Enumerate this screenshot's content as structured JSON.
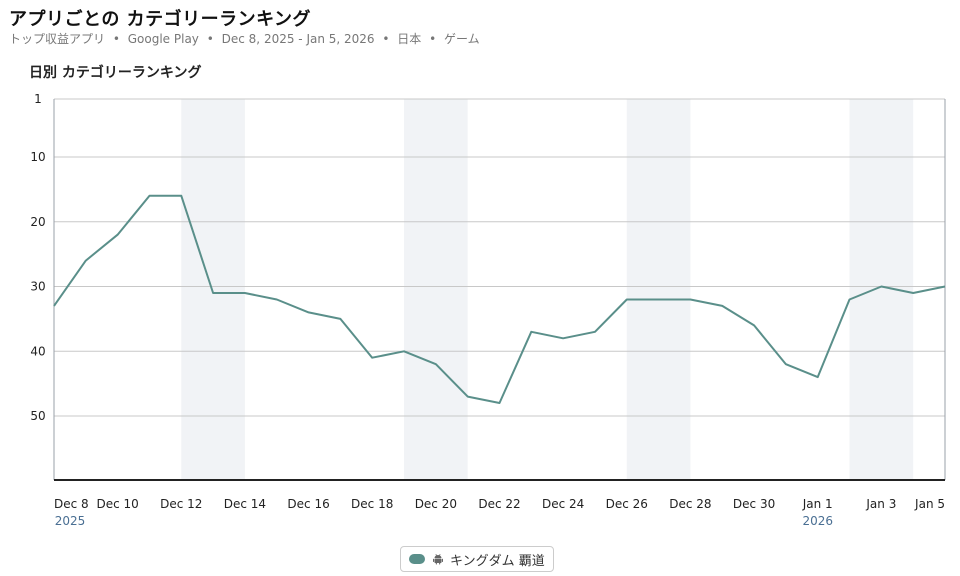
{
  "header": {
    "title": "アプリごとの カテゴリーランキング",
    "subtitle_parts": [
      "トップ収益アプリ",
      "Google Play",
      "Dec 8, 2025 - Jan 5, 2026",
      "日本",
      "ゲーム"
    ],
    "separator": "•"
  },
  "chart_data": {
    "type": "line",
    "title": "日別 カテゴリーランキング",
    "y_axis": {
      "reversed": true,
      "min": 1,
      "max": 60,
      "ticks": [
        1,
        10,
        20,
        30,
        40,
        50
      ]
    },
    "x_axis": {
      "start": "2025-12-08",
      "end": "2026-01-05",
      "tick_labels": [
        {
          "date": "2025-12-08",
          "label": "Dec 8",
          "year": "2025"
        },
        {
          "date": "2025-12-10",
          "label": "Dec 10"
        },
        {
          "date": "2025-12-12",
          "label": "Dec 12"
        },
        {
          "date": "2025-12-14",
          "label": "Dec 14"
        },
        {
          "date": "2025-12-16",
          "label": "Dec 16"
        },
        {
          "date": "2025-12-18",
          "label": "Dec 18"
        },
        {
          "date": "2025-12-20",
          "label": "Dec 20"
        },
        {
          "date": "2025-12-22",
          "label": "Dec 22"
        },
        {
          "date": "2025-12-24",
          "label": "Dec 24"
        },
        {
          "date": "2025-12-26",
          "label": "Dec 26"
        },
        {
          "date": "2025-12-28",
          "label": "Dec 28"
        },
        {
          "date": "2025-12-30",
          "label": "Dec 30"
        },
        {
          "date": "2026-01-01",
          "label": "Jan 1",
          "year": "2026"
        },
        {
          "date": "2026-01-03",
          "label": "Jan 3"
        },
        {
          "date": "2026-01-05",
          "label": "Jan 5"
        }
      ]
    },
    "weekend_bands": [
      [
        "2025-12-12",
        "2025-12-14"
      ],
      [
        "2025-12-19",
        "2025-12-21"
      ],
      [
        "2025-12-26",
        "2025-12-28"
      ],
      [
        "2026-01-02",
        "2026-01-04"
      ]
    ],
    "grid": true,
    "legend_position": "bottom-center",
    "series": [
      {
        "name": "キングダム 覇道",
        "platform_icon": "android-icon",
        "color": "#5a8f8a",
        "x": [
          "2025-12-08",
          "2025-12-09",
          "2025-12-10",
          "2025-12-11",
          "2025-12-12",
          "2025-12-13",
          "2025-12-14",
          "2025-12-15",
          "2025-12-16",
          "2025-12-17",
          "2025-12-18",
          "2025-12-19",
          "2025-12-20",
          "2025-12-21",
          "2025-12-22",
          "2025-12-23",
          "2025-12-24",
          "2025-12-25",
          "2025-12-26",
          "2025-12-27",
          "2025-12-28",
          "2025-12-29",
          "2025-12-30",
          "2025-12-31",
          "2026-01-01",
          "2026-01-02",
          "2026-01-03",
          "2026-01-04",
          "2026-01-05"
        ],
        "values": [
          33,
          26,
          22,
          16,
          16,
          31,
          31,
          32,
          34,
          35,
          41,
          40,
          42,
          47,
          48,
          37,
          38,
          37,
          32,
          32,
          32,
          33,
          36,
          42,
          44,
          32,
          30,
          31,
          30
        ]
      }
    ]
  }
}
